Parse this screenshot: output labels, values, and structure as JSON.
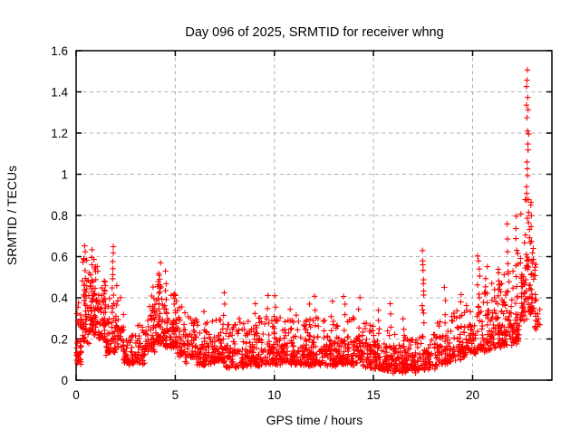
{
  "page": {
    "background_color": "#ffffff",
    "text_color": "#000000"
  },
  "chart_data": {
    "type": "scatter",
    "title": "Day 096 of 2025, SRMTID for receiver whng",
    "xlabel": "GPS time / hours",
    "ylabel": "SRMTID / TECUs",
    "xlim": [
      0,
      24
    ],
    "ylim": [
      0,
      1.6
    ],
    "xticks": [
      0,
      5,
      10,
      15,
      20
    ],
    "xtick_labels": [
      "0",
      "5",
      "10",
      "15",
      "20"
    ],
    "yticks": [
      0,
      0.2,
      0.4,
      0.6,
      0.8,
      1,
      1.2,
      1.4,
      1.6
    ],
    "ytick_labels": [
      "0",
      "0.2",
      "0.4",
      "0.6",
      "0.8",
      "1",
      "1.2",
      "1.4",
      "1.6"
    ],
    "grid": true,
    "grid_style": "dashed",
    "grid_color": "#b0b0b0",
    "axis_color": "#000000",
    "legend": "none",
    "marker": "plus",
    "marker_color": "#ff0000",
    "marker_size_px": 7,
    "series_name": "SRMTID",
    "observed_min_value": 0.03,
    "max_point": {
      "hour": 22.8,
      "value": 1.5
    },
    "shape_notes": "dense low band 0.05-0.3 TECU through midday; morning peaks ~0.65 near 0.5h, 0.9h, 1.9h; secondary bump ~0.55 near 4.2h; quiet minimum ~0.05 near 17h; narrow spike ~0.6 at 17.5h; steady rise after 19h; sharp spike to 1.5 near 22.8h; data ends ~23.4h",
    "seed": 96,
    "density_bands": [
      [
        0.0,
        0.3,
        35,
        0.08,
        0.38
      ],
      [
        0.3,
        0.7,
        45,
        0.18,
        0.58
      ],
      [
        0.7,
        1.1,
        55,
        0.22,
        0.55
      ],
      [
        1.1,
        1.5,
        45,
        0.2,
        0.48
      ],
      [
        1.5,
        1.9,
        40,
        0.13,
        0.4
      ],
      [
        1.9,
        2.4,
        40,
        0.14,
        0.4
      ],
      [
        2.4,
        3.0,
        50,
        0.08,
        0.26
      ],
      [
        3.0,
        3.5,
        45,
        0.08,
        0.26
      ],
      [
        3.5,
        4.0,
        45,
        0.13,
        0.4
      ],
      [
        4.0,
        4.5,
        50,
        0.18,
        0.5
      ],
      [
        4.5,
        5.0,
        50,
        0.15,
        0.42
      ],
      [
        5.0,
        5.5,
        45,
        0.12,
        0.35
      ],
      [
        5.5,
        6.1,
        50,
        0.09,
        0.3
      ],
      [
        6.1,
        6.8,
        55,
        0.07,
        0.27
      ],
      [
        6.8,
        7.5,
        60,
        0.08,
        0.29
      ],
      [
        7.5,
        8.2,
        60,
        0.06,
        0.27
      ],
      [
        8.2,
        8.9,
        60,
        0.07,
        0.29
      ],
      [
        8.9,
        9.6,
        60,
        0.07,
        0.3
      ],
      [
        9.6,
        10.3,
        60,
        0.08,
        0.3
      ],
      [
        10.3,
        11.0,
        60,
        0.08,
        0.29
      ],
      [
        11.0,
        11.7,
        60,
        0.08,
        0.31
      ],
      [
        11.7,
        12.4,
        60,
        0.07,
        0.3
      ],
      [
        12.4,
        13.1,
        60,
        0.07,
        0.29
      ],
      [
        13.1,
        13.8,
        60,
        0.08,
        0.31
      ],
      [
        13.8,
        14.5,
        60,
        0.07,
        0.31
      ],
      [
        14.5,
        15.2,
        60,
        0.06,
        0.28
      ],
      [
        15.2,
        15.9,
        60,
        0.05,
        0.26
      ],
      [
        15.9,
        16.6,
        60,
        0.04,
        0.22
      ],
      [
        16.6,
        17.2,
        55,
        0.04,
        0.19
      ],
      [
        17.2,
        17.6,
        30,
        0.05,
        0.22
      ],
      [
        17.6,
        18.2,
        45,
        0.06,
        0.22
      ],
      [
        18.2,
        18.9,
        55,
        0.08,
        0.28
      ],
      [
        18.9,
        19.6,
        55,
        0.1,
        0.33
      ],
      [
        19.6,
        20.2,
        50,
        0.12,
        0.37
      ],
      [
        20.2,
        20.9,
        55,
        0.14,
        0.42
      ],
      [
        20.9,
        21.5,
        55,
        0.16,
        0.46
      ],
      [
        21.5,
        22.0,
        50,
        0.17,
        0.52
      ],
      [
        22.0,
        22.4,
        45,
        0.18,
        0.62
      ],
      [
        22.4,
        22.75,
        45,
        0.28,
        0.88
      ],
      [
        22.75,
        23.1,
        40,
        0.32,
        0.9
      ],
      [
        23.1,
        23.4,
        20,
        0.25,
        0.58
      ]
    ],
    "spike_columns": [
      [
        0.45,
        0.3,
        0.66,
        10
      ],
      [
        0.75,
        0.35,
        0.62,
        9
      ],
      [
        0.95,
        0.3,
        0.58,
        8
      ],
      [
        1.45,
        0.25,
        0.48,
        6
      ],
      [
        1.85,
        0.28,
        0.66,
        12
      ],
      [
        2.1,
        0.2,
        0.45,
        6
      ],
      [
        3.9,
        0.25,
        0.45,
        6
      ],
      [
        4.2,
        0.28,
        0.56,
        9
      ],
      [
        4.55,
        0.28,
        0.52,
        7
      ],
      [
        5.05,
        0.2,
        0.42,
        6
      ],
      [
        6.5,
        0.15,
        0.33,
        5
      ],
      [
        7.45,
        0.15,
        0.43,
        6
      ],
      [
        9.0,
        0.14,
        0.38,
        5
      ],
      [
        9.7,
        0.14,
        0.4,
        5
      ],
      [
        10.05,
        0.12,
        0.4,
        6
      ],
      [
        10.8,
        0.12,
        0.33,
        4
      ],
      [
        11.8,
        0.12,
        0.37,
        5
      ],
      [
        12.05,
        0.13,
        0.4,
        5
      ],
      [
        12.9,
        0.12,
        0.38,
        5
      ],
      [
        13.55,
        0.14,
        0.42,
        6
      ],
      [
        14.3,
        0.12,
        0.4,
        5
      ],
      [
        15.3,
        0.1,
        0.35,
        5
      ],
      [
        15.85,
        0.12,
        0.36,
        6
      ],
      [
        16.5,
        0.1,
        0.3,
        5
      ],
      [
        17.5,
        0.28,
        0.62,
        12
      ],
      [
        18.6,
        0.14,
        0.45,
        6
      ],
      [
        19.4,
        0.15,
        0.42,
        6
      ],
      [
        20.3,
        0.33,
        0.6,
        9
      ],
      [
        20.7,
        0.3,
        0.55,
        7
      ],
      [
        21.3,
        0.28,
        0.55,
        8
      ],
      [
        21.8,
        0.42,
        0.75,
        6
      ],
      [
        22.2,
        0.5,
        0.8,
        6
      ],
      [
        22.77,
        0.75,
        1.5,
        20
      ],
      [
        23.0,
        0.45,
        0.85,
        8
      ]
    ]
  }
}
